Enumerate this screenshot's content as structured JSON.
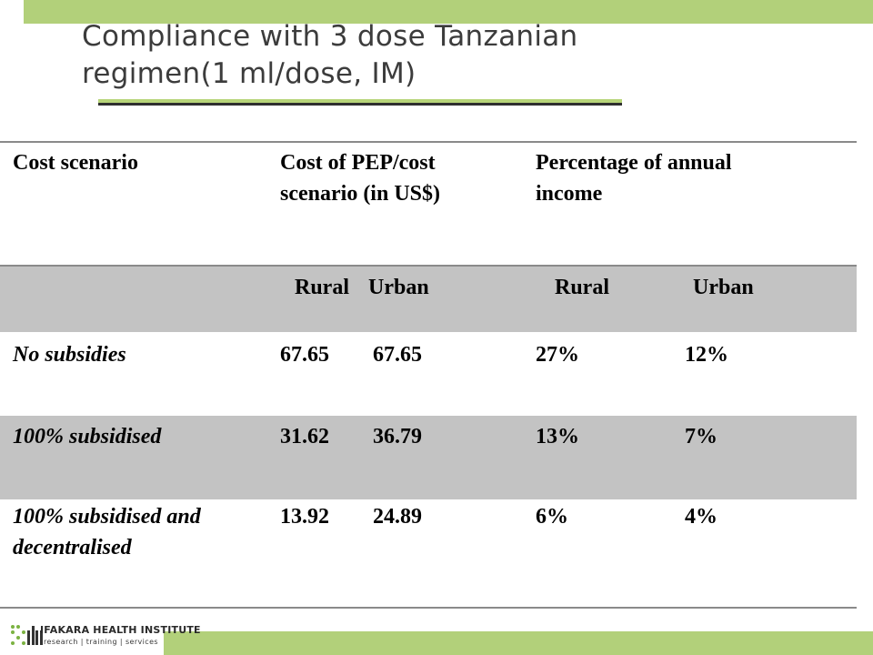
{
  "slide": {
    "title_line1": "Compliance with 3 dose Tanzanian",
    "title_line2": "regimen(1 ml/dose, IM)"
  },
  "table": {
    "header": {
      "col1": "Cost scenario",
      "col2_line1": "Cost of PEP/cost",
      "col2_line2": "scenario (in US$)",
      "col3_line1": "Percentage of annual",
      "col3_line2": "income"
    },
    "subheader": {
      "rural1": "Rural",
      "urban1": "Urban",
      "rural2": "Rural",
      "urban2": "Urban"
    },
    "rows": [
      {
        "scenario": "No subsidies",
        "cost_rural": "67.65",
        "cost_urban": "67.65",
        "pct_rural": "27%",
        "pct_urban": "12%"
      },
      {
        "scenario": "100% subsidised",
        "cost_rural": "31.62",
        "cost_urban": "36.79",
        "pct_rural": "13%",
        "pct_urban": "7%"
      },
      {
        "scenario_line1": "100% subsidised and",
        "scenario_line2": "decentralised",
        "cost_rural": "13.92",
        "cost_urban": "24.89",
        "pct_rural": "6%",
        "pct_urban": "4%"
      }
    ]
  },
  "footer": {
    "logo_name": "IFAKARA HEALTH INSTITUTE",
    "logo_tagline": "research | training | services",
    "logo_icon": "ihi-logo-icon"
  },
  "colors": {
    "accent_green": "#b2d07a",
    "row_grey": "#c3c3c3"
  }
}
